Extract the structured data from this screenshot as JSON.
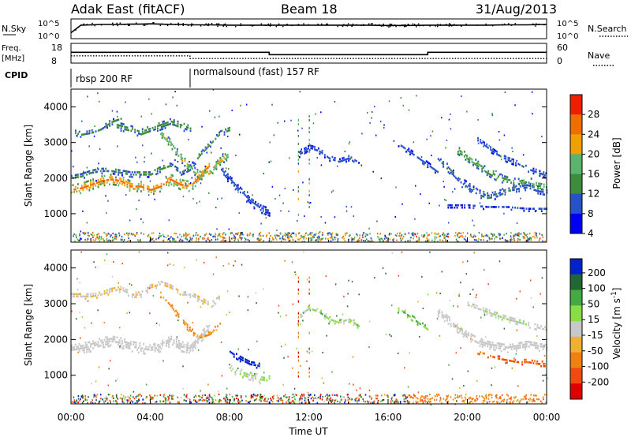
{
  "header": {
    "title": "Adak East (fitACF)",
    "beam": "Beam 18",
    "date": "31/Aug/2013"
  },
  "chart_data": [
    {
      "type": "line",
      "panel": "noise",
      "ylabel_left": "N.Sky",
      "ylabel_right": "N.Search",
      "yticks_left": [
        "10^5",
        "10^0"
      ],
      "yticks_right": [
        "10^5",
        "10^0"
      ],
      "log_scale": true,
      "series": [
        {
          "name": "N.Sky",
          "style": "solid",
          "x": [
            0,
            0.5,
            1,
            1.5,
            2,
            2.5,
            3,
            3.5,
            4,
            4.5,
            5,
            5.5,
            6,
            7,
            8,
            9,
            10,
            11,
            12,
            13,
            14,
            15,
            16,
            17,
            18,
            19,
            20,
            21,
            22,
            23,
            24
          ],
          "y_log10": [
            1.3,
            3.6,
            3.7,
            3.8,
            3.8,
            3.8,
            3.9,
            3.9,
            4.0,
            3.9,
            3.8,
            3.8,
            3.7,
            3.7,
            3.6,
            3.6,
            3.6,
            3.6,
            3.6,
            3.6,
            3.6,
            3.6,
            3.5,
            3.5,
            3.6,
            3.6,
            3.6,
            3.6,
            3.7,
            3.7,
            3.8
          ]
        }
      ]
    },
    {
      "type": "line",
      "panel": "frequency",
      "ylabel_left": "Freq. [MHz]",
      "ylabel_right": "Nave",
      "yticks_left": [
        "18",
        "8"
      ],
      "yticks_right": [
        "60",
        "0"
      ],
      "series": [
        {
          "name": "Freq.",
          "style": "solid",
          "x": [
            0,
            10,
            10,
            18,
            18,
            24
          ],
          "y": [
            13.2,
            13.2,
            11.4,
            11.4,
            13.2,
            13.2
          ]
        },
        {
          "name": "Nave",
          "style": "dotted",
          "x": [
            0,
            6,
            6,
            24
          ],
          "y": [
            22,
            22,
            14,
            14
          ]
        }
      ]
    },
    {
      "type": "table",
      "panel": "cpid",
      "label": "CPID",
      "segments": [
        {
          "start": 0,
          "end": 6,
          "name": "rbsp 200 RF"
        },
        {
          "start": 6,
          "end": 24,
          "name": "normalsound (fast) 157 RF"
        }
      ]
    },
    {
      "type": "heatmap",
      "panel": "power",
      "ylabel": "Slant Range [km]",
      "yticks": [
        1000,
        2000,
        3000,
        4000
      ],
      "ylim": [
        200,
        4500
      ],
      "xlim": [
        0,
        24
      ],
      "colorbar_label": "Power [dB]",
      "colorbar_ticks": [
        4,
        8,
        12,
        16,
        20,
        24,
        28
      ],
      "colorbar_range": [
        0,
        30
      ],
      "colorbar_colors": [
        "#0000f0",
        "#2850c8",
        "#3c8c3c",
        "#5ab46e",
        "#f0a000",
        "#f06e00",
        "#f01e00"
      ],
      "echo_bands": [
        {
          "x": [
            0,
            0.5,
            1,
            1.5,
            2,
            2.5,
            3,
            3.5,
            4,
            4.5,
            5,
            5.5,
            6,
            6.5,
            7
          ],
          "y": [
            1700,
            1750,
            1850,
            1950,
            2000,
            1950,
            1800,
            1800,
            1700,
            1800,
            2000,
            1850,
            1800,
            2100,
            2400
          ],
          "power": 22,
          "thickness": 280
        },
        {
          "x": [
            0,
            0.5,
            1,
            1.5,
            2,
            2.5,
            3,
            3.5,
            4,
            4.5,
            5,
            5.5,
            6,
            6.5,
            7,
            7.5,
            8
          ],
          "y": [
            2050,
            2100,
            2200,
            2250,
            2250,
            2200,
            2150,
            2150,
            2150,
            2300,
            2400,
            2200,
            2350,
            2700,
            3000,
            3300,
            3400
          ],
          "power": 10,
          "thickness": 180
        },
        {
          "x": [
            0.2,
            0.5,
            1,
            1.5,
            2,
            2.5
          ],
          "y": [
            3300,
            3250,
            3300,
            3400,
            3600,
            3700
          ],
          "power": 9,
          "thickness": 140
        },
        {
          "x": [
            2.3,
            3,
            3.5,
            4,
            4.5,
            5,
            5.5,
            6
          ],
          "y": [
            3500,
            3400,
            3300,
            3400,
            3500,
            3600,
            3500,
            3400
          ],
          "power": 11,
          "thickness": 220
        },
        {
          "x": [
            4.5,
            5,
            5.5,
            6,
            6.5,
            7,
            7.5,
            8
          ],
          "y": [
            3300,
            3000,
            2600,
            2300,
            2100,
            2200,
            2500,
            2700
          ],
          "power": 18,
          "thickness": 200
        },
        {
          "x": [
            7.5,
            8,
            8.5,
            9,
            9.5,
            10
          ],
          "y": [
            2300,
            2000,
            1700,
            1400,
            1200,
            1100
          ],
          "power": 6,
          "thickness": 260
        },
        {
          "x": [
            11.5,
            12,
            12.5,
            13,
            13.5,
            14,
            14.5
          ],
          "y": [
            2700,
            2900,
            2800,
            2600,
            2500,
            2600,
            2400
          ],
          "power": 6,
          "thickness": 160
        },
        {
          "x": [
            16.5,
            17,
            17.5,
            18,
            18.5
          ],
          "y": [
            3000,
            2800,
            2600,
            2400,
            2200
          ],
          "power": 6,
          "thickness": 150
        },
        {
          "x": [
            18.5,
            19,
            19.5,
            20,
            20.5,
            21,
            21.5,
            22,
            22.5,
            23,
            23.5,
            24
          ],
          "y": [
            2600,
            2300,
            2000,
            1800,
            1600,
            1500,
            1550,
            1700,
            1750,
            1800,
            1700,
            1650
          ],
          "power": 8,
          "thickness": 200
        },
        {
          "x": [
            19.5,
            20,
            20.5,
            21,
            21.5,
            22,
            22.5,
            23,
            23.5,
            24
          ],
          "y": [
            2800,
            2600,
            2400,
            2200,
            2050,
            1950,
            1900,
            1950,
            1850,
            1800
          ],
          "power": 14,
          "thickness": 200
        },
        {
          "x": [
            20.5,
            21,
            21.5,
            22,
            22.5,
            23,
            23.5,
            24
          ],
          "y": [
            3100,
            2900,
            2700,
            2550,
            2450,
            2300,
            2200,
            2100
          ],
          "power": 7,
          "thickness": 160
        },
        {
          "x": [
            19,
            20,
            21,
            22,
            23,
            24
          ],
          "y": [
            1250,
            1250,
            1200,
            1200,
            1150,
            1150
          ],
          "power": 6,
          "thickness": 100
        }
      ]
    },
    {
      "type": "heatmap",
      "panel": "velocity",
      "ylabel": "Slant Range [km]",
      "yticks": [
        1000,
        2000,
        3000,
        4000
      ],
      "ylim": [
        200,
        4500
      ],
      "xlim": [
        0,
        24
      ],
      "xticks": [
        "00:00",
        "04:00",
        "08:00",
        "12:00",
        "16:00",
        "20:00",
        "00:00"
      ],
      "xlabel": "Time UT",
      "colorbar_label": "Velocity [m s-1]",
      "colorbar_ticks": [
        200,
        100,
        50,
        15,
        -15,
        -50,
        -100,
        -200
      ],
      "colorbar_range": [
        -250,
        250
      ],
      "colorbar_colors": [
        "#0022cc",
        "#226633",
        "#44aa44",
        "#88dd44",
        "#c8c8c8",
        "#f0b030",
        "#f08010",
        "#f04a10",
        "#e00000"
      ],
      "echo_bands": [
        {
          "x": [
            0,
            0.5,
            1,
            1.5,
            2,
            2.5,
            3,
            3.5,
            4,
            4.5,
            5,
            5.5,
            6,
            6.5,
            7
          ],
          "y": [
            1750,
            1800,
            1850,
            1950,
            2000,
            1950,
            1850,
            1800,
            1750,
            1850,
            2000,
            1850,
            1800,
            2100,
            2400
          ],
          "velocity": 0,
          "thickness": 300
        },
        {
          "x": [
            0,
            0.5,
            1,
            1.5,
            2,
            2.5,
            3,
            3.5,
            4,
            4.5,
            5,
            5.5,
            6,
            6.5,
            7,
            7.5
          ],
          "y": [
            3250,
            3250,
            3250,
            3300,
            3400,
            3450,
            3300,
            3300,
            3500,
            3600,
            3500,
            3300,
            3300,
            3150,
            3000,
            3200
          ],
          "velocity": -10,
          "thickness": 170
        },
        {
          "x": [
            4.5,
            5,
            5.5,
            6,
            6.5,
            7,
            7.5
          ],
          "y": [
            3300,
            3000,
            2600,
            2300,
            2100,
            2200,
            2500
          ],
          "velocity": -40,
          "thickness": 180
        },
        {
          "x": [
            8,
            8.5,
            9,
            9.5
          ],
          "y": [
            1700,
            1500,
            1350,
            1300
          ],
          "velocity": 220,
          "thickness": 160
        },
        {
          "x": [
            8,
            8.5,
            9,
            9.5,
            10
          ],
          "y": [
            1200,
            1100,
            1000,
            950,
            900
          ],
          "velocity": 10,
          "thickness": 200
        },
        {
          "x": [
            11.5,
            12,
            12.5,
            13,
            13.5,
            14,
            14.5
          ],
          "y": [
            2700,
            2900,
            2800,
            2600,
            2500,
            2600,
            2400
          ],
          "velocity": 20,
          "thickness": 140
        },
        {
          "x": [
            16.5,
            17,
            17.5,
            18
          ],
          "y": [
            2900,
            2700,
            2500,
            2300
          ],
          "velocity": 30,
          "thickness": 140
        },
        {
          "x": [
            18.5,
            19,
            19.5,
            20,
            20.5,
            21,
            21.5,
            22,
            22.5,
            23,
            23.5,
            24
          ],
          "y": [
            2800,
            2600,
            2350,
            2150,
            2000,
            1900,
            1850,
            1800,
            1850,
            1900,
            1850,
            1800
          ],
          "velocity": 0,
          "thickness": 260
        },
        {
          "x": [
            20.5,
            21,
            21.5,
            22,
            22.5,
            23,
            23.5,
            24
          ],
          "y": [
            1700,
            1600,
            1500,
            1450,
            1400,
            1400,
            1350,
            1350
          ],
          "velocity": -80,
          "thickness": 140
        },
        {
          "x": [
            20,
            21,
            22,
            23,
            24
          ],
          "y": [
            3000,
            2800,
            2600,
            2450,
            2300
          ],
          "velocity": 5,
          "thickness": 150
        }
      ]
    }
  ]
}
